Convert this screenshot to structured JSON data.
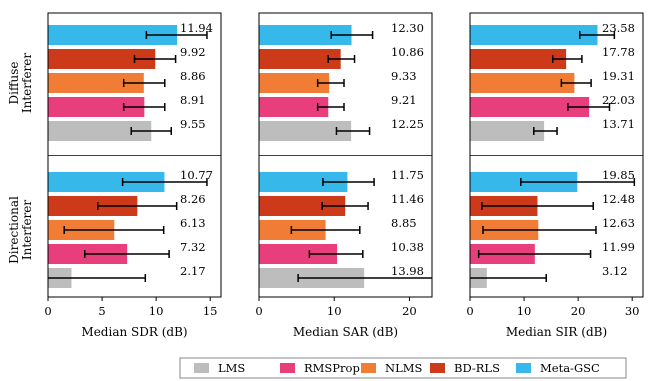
{
  "chart_data": {
    "type": "bar",
    "orientation": "horizontal",
    "groups": [
      "Diffuse Interferer",
      "Directional Interferer"
    ],
    "group_label_lines": [
      [
        "Diffuse",
        "Interferer"
      ],
      [
        "Directional",
        "Interferer"
      ]
    ],
    "series_order": [
      "Meta-GSC",
      "BD-RLS",
      "NLMS",
      "RMSProp",
      "LMS"
    ],
    "colors": {
      "LMS": "#bdbdbd",
      "RMSProp": "#e83e7c",
      "NLMS": "#f07c35",
      "BD-RLS": "#cc3a1a",
      "Meta-GSC": "#36b8ea"
    },
    "legend": {
      "placement": "bottom",
      "entries": [
        "LMS",
        "RMSProp",
        "NLMS",
        "BD-RLS",
        "Meta-GSC"
      ]
    },
    "panels": [
      {
        "xlabel": "Median SDR (dB)",
        "xlim": [
          0,
          16
        ],
        "xticks": [
          0,
          5,
          10,
          15
        ],
        "groups": [
          {
            "values": [
              11.94,
              9.92,
              8.86,
              8.91,
              9.55
            ],
            "labels": [
              "11.94",
              "9.92",
              "8.86",
              "8.91",
              "9.55"
            ],
            "err_low": [
              9.1,
              8.0,
              7.0,
              7.0,
              7.7
            ],
            "err_high": [
              14.7,
              11.8,
              10.8,
              10.8,
              11.4
            ]
          },
          {
            "values": [
              10.77,
              8.26,
              6.13,
              7.32,
              2.17
            ],
            "labels": [
              "10.77",
              "8.26",
              "6.13",
              "7.32",
              "2.17"
            ],
            "err_low": [
              6.9,
              4.6,
              1.5,
              3.4,
              0
            ],
            "err_high": [
              14.7,
              11.9,
              10.7,
              11.2,
              9.0
            ]
          }
        ]
      },
      {
        "xlabel": "Median SAR (dB)",
        "xlim": [
          0,
          23
        ],
        "xticks": [
          0,
          10,
          20
        ],
        "groups": [
          {
            "values": [
              12.3,
              10.86,
              9.33,
              9.21,
              12.25
            ],
            "labels": [
              "12.30",
              "10.86",
              "9.33",
              "9.21",
              "12.25"
            ],
            "err_low": [
              9.6,
              9.2,
              7.8,
              7.8,
              10.3
            ],
            "err_high": [
              15.1,
              12.7,
              11.3,
              11.3,
              14.7
            ]
          },
          {
            "values": [
              11.75,
              11.46,
              8.85,
              10.38,
              13.98
            ],
            "labels": [
              "11.75",
              "11.46",
              "8.85",
              "10.38",
              "13.98"
            ],
            "err_low": [
              8.5,
              8.4,
              4.3,
              6.7,
              5.2
            ],
            "err_high": [
              15.3,
              14.5,
              13.4,
              13.8,
              23.0
            ]
          }
        ]
      },
      {
        "xlabel": "Median SIR (dB)",
        "xlim": [
          0,
          32
        ],
        "xticks": [
          0,
          10,
          20,
          30
        ],
        "groups": [
          {
            "values": [
              23.58,
              17.78,
              19.31,
              22.03,
              13.71
            ],
            "labels": [
              "23.58",
              "17.78",
              "19.31",
              "22.03",
              "13.71"
            ],
            "err_low": [
              20.3,
              15.3,
              16.9,
              18.1,
              11.8
            ],
            "err_high": [
              26.7,
              20.7,
              22.4,
              25.8,
              16.1
            ]
          },
          {
            "values": [
              19.85,
              12.48,
              12.63,
              11.99,
              3.12
            ],
            "labels": [
              "19.85",
              "12.48",
              "12.63",
              "11.99",
              "3.12"
            ],
            "err_low": [
              9.4,
              2.2,
              2.4,
              1.6,
              0
            ],
            "err_high": [
              30.4,
              22.8,
              23.3,
              22.3,
              14.1
            ]
          }
        ]
      }
    ]
  }
}
